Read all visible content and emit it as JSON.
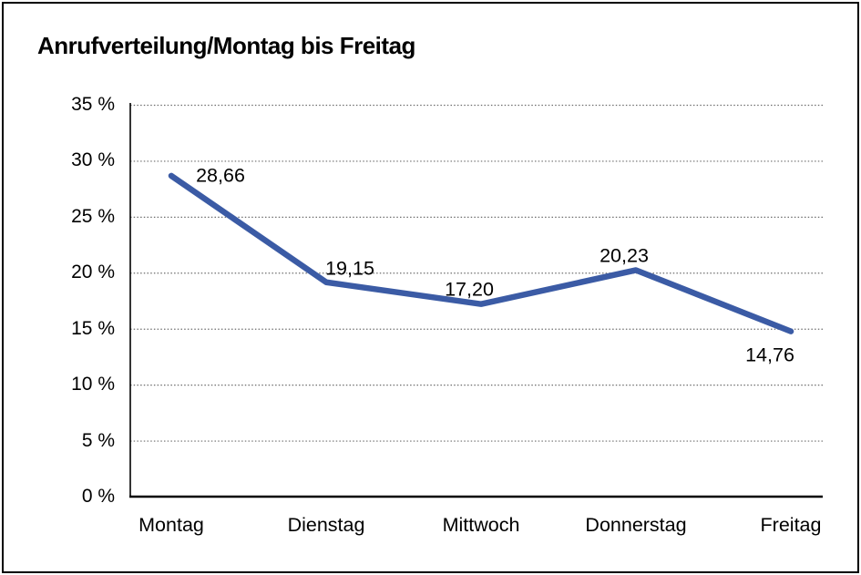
{
  "window": {
    "background_color": "#ffffff",
    "border_color": "#000000"
  },
  "chart_data": {
    "type": "line",
    "title": "Anrufverteilung/Montag bis Freitag",
    "categories": [
      "Montag",
      "Dienstag",
      "Mittwoch",
      "Donnerstag",
      "Freitag"
    ],
    "values": [
      28.66,
      19.15,
      17.2,
      20.23,
      14.76
    ],
    "data_labels": [
      "28,66",
      "19,15",
      "17,20",
      "20,23",
      "14,76"
    ],
    "y_tick_labels": [
      "0 %",
      "5 %",
      "10 %",
      "15 %",
      "20 %",
      "25 %",
      "30 %",
      "35 %"
    ],
    "ylim": [
      0,
      35
    ],
    "y_step": 5,
    "xlabel": "",
    "ylabel": "",
    "legend": "none",
    "grid": "horizontal-dotted",
    "line_color": "#3B5BA5",
    "axis_color": "#000000",
    "gridline_color": "#6e6e6e",
    "text_color": "#000000"
  }
}
